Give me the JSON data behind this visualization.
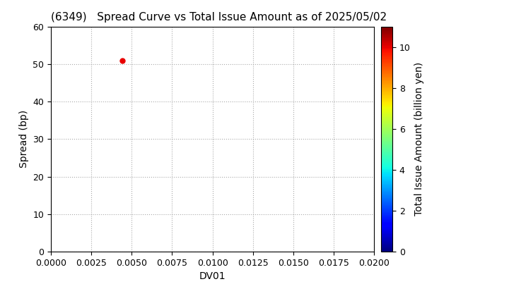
{
  "title": "(6349)   Spread Curve vs Total Issue Amount as of 2025/05/02",
  "xlabel": "DV01",
  "ylabel": "Spread (bp)",
  "xlim": [
    0.0,
    0.02
  ],
  "ylim": [
    0,
    60
  ],
  "xticks": [
    0.0,
    0.0025,
    0.005,
    0.0075,
    0.01,
    0.0125,
    0.015,
    0.0175,
    0.02
  ],
  "yticks": [
    0,
    10,
    20,
    30,
    40,
    50,
    60
  ],
  "scatter_x": [
    0.0044
  ],
  "scatter_y": [
    51
  ],
  "scatter_color_value": [
    10.0
  ],
  "colorbar_label": "Total Issue Amount (billion yen)",
  "colorbar_ticks": [
    0,
    2,
    4,
    6,
    8,
    10
  ],
  "cmap": "jet",
  "vmin": 0,
  "vmax": 11,
  "marker_size": 25,
  "background_color": "#ffffff",
  "grid_color": "#aaaaaa",
  "grid_style": "dotted",
  "title_fontsize": 11,
  "axis_label_fontsize": 10,
  "tick_fontsize": 9
}
